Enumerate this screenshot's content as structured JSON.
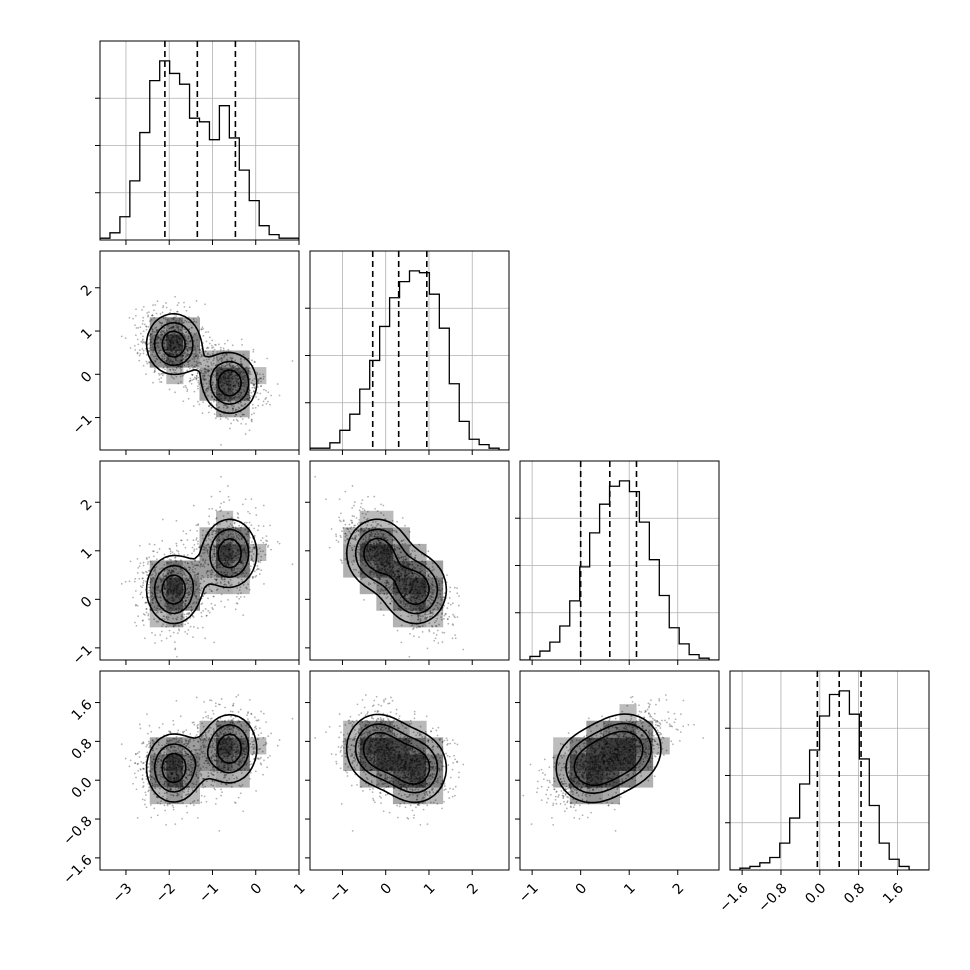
{
  "chart_data": {
    "type": "corner",
    "n_params": 4,
    "params": [
      {
        "name": "",
        "range": [
          -3.6,
          1.0
        ],
        "ticks": [
          -3,
          -2,
          -1,
          0,
          1
        ],
        "tick_labels": [
          "−3",
          "−2",
          "−1",
          "0",
          "1"
        ]
      },
      {
        "name": "",
        "range": [
          -1.75,
          2.85
        ],
        "ticks": [
          -1,
          0,
          1,
          2
        ],
        "tick_labels": [
          "−1",
          "0",
          "1",
          "2"
        ]
      },
      {
        "name": "",
        "range": [
          -1.25,
          2.85
        ],
        "ticks": [
          -1,
          0,
          1,
          2
        ],
        "tick_labels": [
          "−1",
          "0",
          "1",
          "2"
        ]
      },
      {
        "name": "",
        "range": [
          -1.85,
          2.25
        ],
        "ticks": [
          -1.6,
          -0.8,
          0.0,
          0.8,
          1.6
        ],
        "tick_labels": [
          "−1.6",
          "−0.8",
          "0.0",
          "0.8",
          "1.6"
        ]
      }
    ],
    "histograms": [
      {
        "bin_edges_range": [
          -3.6,
          1.0
        ],
        "bins": 20,
        "counts": [
          0.01,
          0.04,
          0.13,
          0.33,
          0.6,
          0.89,
          1.0,
          0.93,
          0.87,
          0.68,
          0.66,
          0.56,
          0.75,
          0.57,
          0.39,
          0.22,
          0.08,
          0.03,
          0.01,
          0.01
        ],
        "quantiles": [
          -2.1,
          -1.35,
          -0.47
        ]
      },
      {
        "bin_edges_range": [
          -1.75,
          2.85
        ],
        "bins": 20,
        "counts": [
          0.01,
          0.01,
          0.04,
          0.11,
          0.2,
          0.34,
          0.5,
          0.69,
          0.85,
          0.94,
          1.0,
          0.99,
          0.87,
          0.68,
          0.37,
          0.16,
          0.06,
          0.03,
          0.01,
          0.0
        ],
        "quantiles": [
          -0.3,
          0.3,
          0.95
        ]
      },
      {
        "bin_edges_range": [
          -1.25,
          2.85
        ],
        "bins": 20,
        "counts": [
          0.0,
          0.02,
          0.05,
          0.1,
          0.19,
          0.33,
          0.52,
          0.71,
          0.87,
          0.97,
          1.0,
          0.94,
          0.77,
          0.56,
          0.36,
          0.18,
          0.09,
          0.03,
          0.01,
          0.0
        ],
        "quantiles": [
          0.0,
          0.6,
          1.15
        ]
      },
      {
        "bin_edges_range": [
          -1.85,
          2.25
        ],
        "bins": 20,
        "counts": [
          0.0,
          0.01,
          0.02,
          0.04,
          0.07,
          0.15,
          0.29,
          0.48,
          0.67,
          0.86,
          0.98,
          1.0,
          0.87,
          0.62,
          0.36,
          0.15,
          0.06,
          0.02,
          0.0,
          0.0
        ],
        "quantiles": [
          -0.05,
          0.4,
          0.85
        ]
      }
    ],
    "mixture": {
      "description_of_modes": "",
      "components": [
        {
          "weight": 0.5,
          "mean": [
            -1.9,
            0.7,
            0.2,
            0.25
          ]
        },
        {
          "weight": 0.5,
          "mean": [
            -0.6,
            -0.2,
            0.95,
            0.65
          ]
        }
      ],
      "spread": [
        0.4,
        0.45,
        0.45,
        0.45
      ]
    },
    "grid": true,
    "legend": "none"
  }
}
